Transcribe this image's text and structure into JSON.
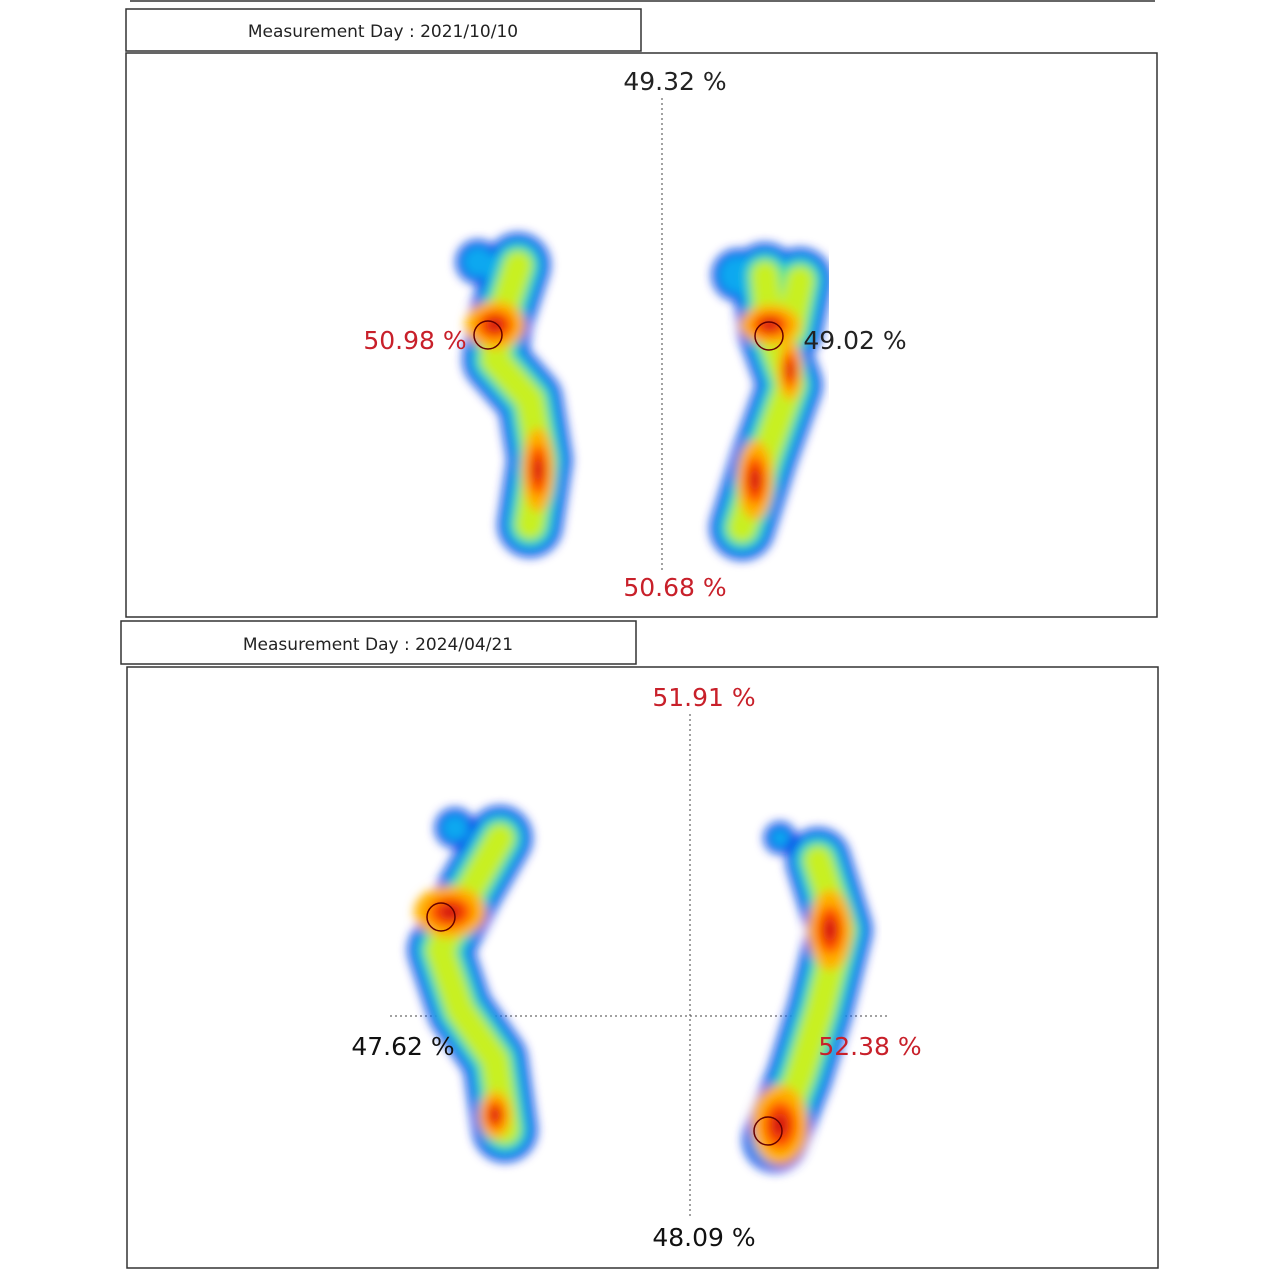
{
  "panels": [
    {
      "measurement_day": "Measurement Day : 2021/10/10",
      "labels": [
        {
          "text": "49.32 %",
          "color": "#222222"
        },
        {
          "text": "50.98 %",
          "color": "#c8202a"
        },
        {
          "text": "49.02 %",
          "color": "#222222"
        },
        {
          "text": "50.68 %",
          "color": "#c8202a"
        }
      ]
    },
    {
      "measurement_day": "Measurement Day : 2024/04/21",
      "labels": [
        {
          "text": "51.91 %",
          "color": "#c8202a"
        },
        {
          "text": "47.62 %",
          "color": "#111111"
        },
        {
          "text": "52.38 %",
          "color": "#c8202a"
        },
        {
          "text": "48.09 %",
          "color": "#111111"
        }
      ]
    }
  ]
}
